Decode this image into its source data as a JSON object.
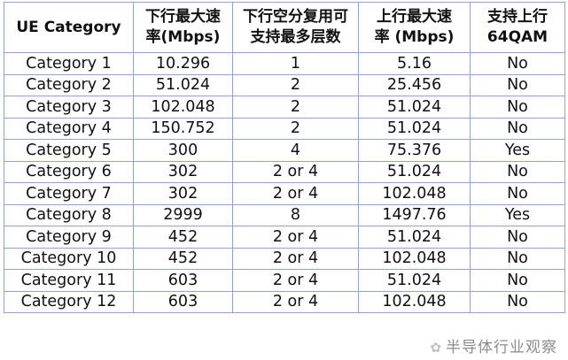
{
  "headers": [
    "UE Category",
    "下行最大速\n率(Mbps)",
    "下行空分复用可\n支持最多层数",
    "上行最大速\n率 (Mbps)",
    "支持上行\n64QAM"
  ],
  "rows": [
    [
      "Category 1",
      "10.296",
      "1",
      "5.16",
      "No"
    ],
    [
      "Category 2",
      "51.024",
      "2",
      "25.456",
      "No"
    ],
    [
      "Category 3",
      "102.048",
      "2",
      "51.024",
      "No"
    ],
    [
      "Category 4",
      "150.752",
      "2",
      "51.024",
      "No"
    ],
    [
      "Category 5",
      "300",
      "4",
      "75.376",
      "Yes"
    ],
    [
      "Category 6",
      "302",
      "2 or 4",
      "51.024",
      "No"
    ],
    [
      "Category 7",
      "302",
      "2 or 4",
      "102.048",
      "No"
    ],
    [
      "Category 8",
      "2999",
      "8",
      "1497.76",
      "Yes"
    ],
    [
      "Category 9",
      "452",
      "2 or 4",
      "51.024",
      "No"
    ],
    [
      "Category 10",
      "452",
      "2 or 4",
      "102.048",
      "No"
    ],
    [
      "Category 11",
      "603",
      "2 or 4",
      "51.024",
      "No"
    ],
    [
      "Category 12",
      "603",
      "2 or 4",
      "102.048",
      "No"
    ]
  ],
  "watermark": "半导体行业观察",
  "colors": {
    "border": "#8fa3d6"
  }
}
